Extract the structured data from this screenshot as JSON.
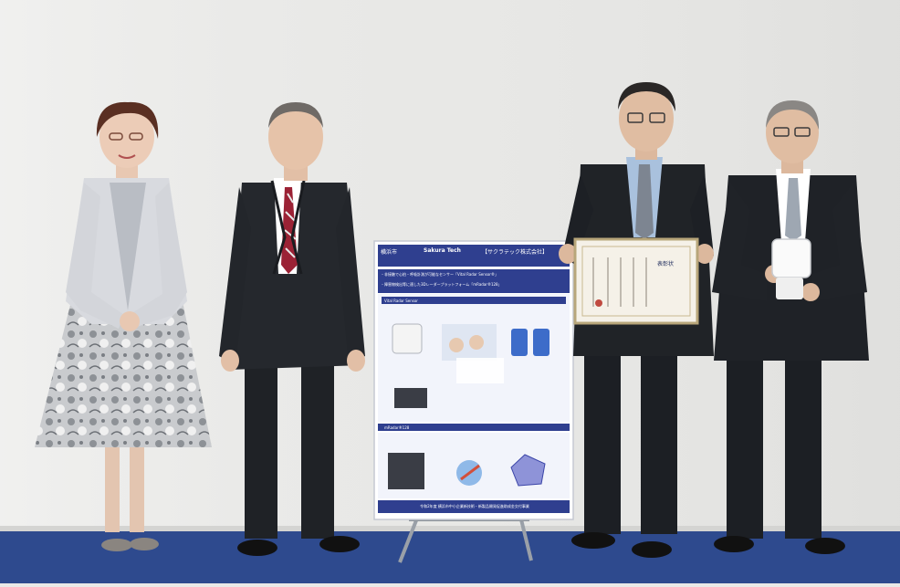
{
  "photo": {
    "colors": {
      "wall": "#e9e9e7",
      "carpet": "#2e4a8e",
      "poster_blue": "#2f3f8f",
      "poster_panel": "#f2f4fb",
      "suit": "#202327",
      "jacket_light": "#d8dadf",
      "certificate": "#f5f1e8"
    }
  },
  "poster": {
    "city": "横浜市",
    "brand": "Sakura Tech",
    "company": "【サクラテック株式会社】",
    "headline1": "・非接触で心拍・呼吸計測が可能なセンサー「Vital Radar Sensor®」",
    "headline2": "・障害物検出等に適した3Dレーダープラットフォーム「mRadar®128」",
    "section1": "Vital Radar Sensor",
    "section2": "mRadar®128",
    "footer": "令和2年度 横浜市中小企業新技術・新製品開発促進助成金交付事業"
  },
  "certificate": {
    "title": "表彰状"
  }
}
